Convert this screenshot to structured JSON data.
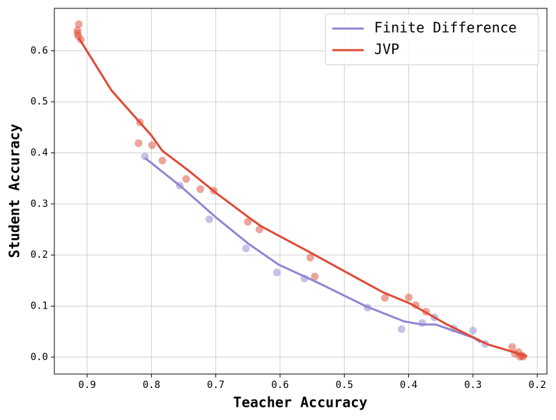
{
  "chart_data": {
    "type": "line-scatter",
    "x_label": "Teacher Accuracy",
    "y_label": "Student Accuracy",
    "xlim": [
      0.951,
      0.185
    ],
    "ylim": [
      -0.033,
      0.683
    ],
    "xticks": [
      0.9,
      0.8,
      0.7,
      0.6,
      0.5,
      0.4,
      0.3,
      0.2
    ],
    "yticks": [
      {
        "value": 0,
        "label": "0.0"
      },
      0.1,
      0.2,
      0.3,
      0.4,
      0.5,
      0.6
    ],
    "grid": true,
    "legend": "upper right",
    "series": [
      {
        "name": "Finite Difference",
        "color": "#8f86d2",
        "x": [
          0.81,
          0.754,
          0.7,
          0.649,
          0.602,
          0.543,
          0.467,
          0.407,
          0.38,
          0.358,
          0.299,
          0.288
        ],
        "values": [
          0.39,
          0.334,
          0.274,
          0.222,
          0.181,
          0.147,
          0.1,
          0.07,
          0.064,
          0.064,
          0.038,
          0.029
        ],
        "points_x": [
          0.81,
          0.756,
          0.71,
          0.653,
          0.605,
          0.562,
          0.464,
          0.411,
          0.379,
          0.36,
          0.33,
          0.3,
          0.281
        ],
        "points_y": [
          0.393,
          0.336,
          0.27,
          0.213,
          0.166,
          0.154,
          0.097,
          0.055,
          0.067,
          0.078,
          0.056,
          0.052,
          0.026
        ]
      },
      {
        "name": "JVP",
        "color": "#de4a36",
        "x": [
          0.913,
          0.862,
          0.8,
          0.783,
          0.743,
          0.7,
          0.649,
          0.629,
          0.559,
          0.44,
          0.396,
          0.342,
          0.277,
          0.216
        ],
        "values": [
          0.625,
          0.522,
          0.434,
          0.404,
          0.366,
          0.322,
          0.274,
          0.256,
          0.209,
          0.127,
          0.104,
          0.065,
          0.025,
          0.002
        ],
        "points_x": [
          0.913,
          0.915,
          0.915,
          0.914,
          0.91,
          0.818,
          0.82,
          0.799,
          0.783,
          0.746,
          0.724,
          0.703,
          0.65,
          0.632,
          0.553,
          0.546,
          0.437,
          0.4,
          0.389,
          0.373,
          0.239,
          0.235,
          0.229,
          0.227,
          0.224,
          0.222
        ],
        "points_y": [
          0.652,
          0.64,
          0.634,
          0.629,
          0.622,
          0.46,
          0.419,
          0.415,
          0.385,
          0.349,
          0.329,
          0.326,
          0.265,
          0.25,
          0.195,
          0.158,
          0.116,
          0.117,
          0.102,
          0.089,
          0.02,
          0.007,
          0.01,
          0.001,
          0.003,
          0.001
        ]
      }
    ]
  }
}
